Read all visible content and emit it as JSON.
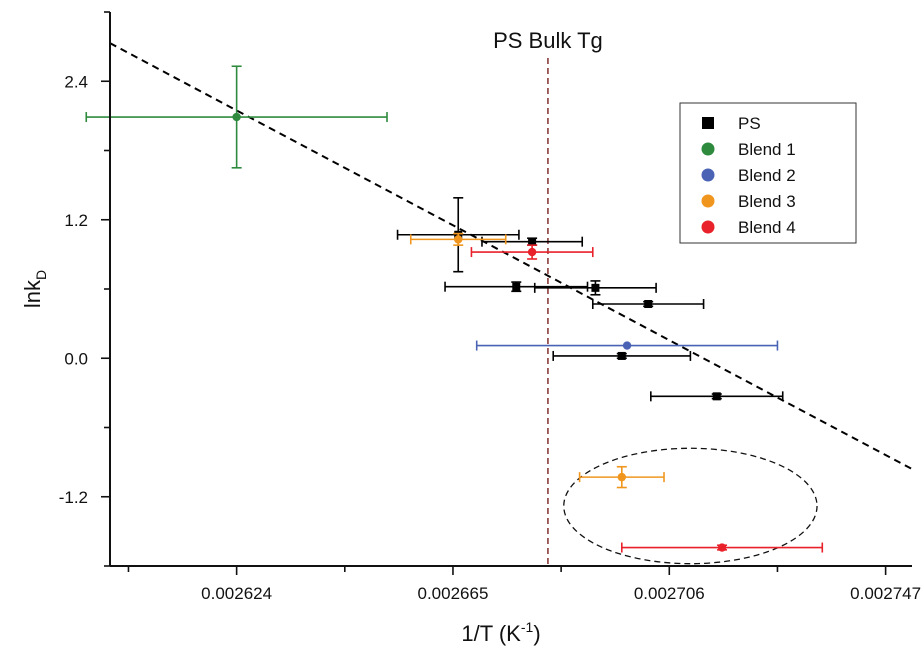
{
  "chart_data": {
    "type": "scatter",
    "title": "",
    "xlabel": "1/T (K",
    "xlabel_sup": "-1",
    "xlabel_close": ")",
    "ylabel": "lnk",
    "ylabel_sub": "D",
    "xlim": [
      0.0026,
      0.002752
    ],
    "ylim": [
      -1.8,
      3.0
    ],
    "x_ticks": [
      "0.002624",
      "0.002665",
      "0.002706",
      "0.002747"
    ],
    "y_ticks": [
      "2.4",
      "1.2",
      "0.0",
      "-1.2"
    ],
    "legend_position": "top-right",
    "series": [
      {
        "name": "PS",
        "marker": "square",
        "color": "#000000",
        "points": [
          {
            "x": 0.002666,
            "y": 1.07,
            "xerr": 1.15e-05,
            "yerr": 0.32
          },
          {
            "x": 0.00268,
            "y": 1.01,
            "xerr": 9.5e-06,
            "yerr": 0.03
          },
          {
            "x": 0.002677,
            "y": 0.62,
            "xerr": 1.35e-05,
            "yerr": 0.04
          },
          {
            "x": 0.002692,
            "y": 0.61,
            "xerr": 1.15e-05,
            "yerr": 0.06
          },
          {
            "x": 0.002702,
            "y": 0.47,
            "xerr": 1.05e-05,
            "yerr": 0.02
          },
          {
            "x": 0.002697,
            "y": 0.02,
            "xerr": 1.3e-05,
            "yerr": 0.02
          },
          {
            "x": 0.002715,
            "y": -0.33,
            "xerr": 1.25e-05,
            "yerr": 0.02
          }
        ]
      },
      {
        "name": "Blend 1",
        "marker": "circle",
        "color": "#2e8b3e",
        "points": [
          {
            "x": 0.002624,
            "y": 2.09,
            "xerr": 2.85e-05,
            "yerr": 0.44
          }
        ]
      },
      {
        "name": "Blend 2",
        "marker": "circle",
        "color": "#4a63b5",
        "points": [
          {
            "x": 0.002698,
            "y": 0.11,
            "xerr": 2.85e-05,
            "yerr": 0.0
          }
        ]
      },
      {
        "name": "Blend 3",
        "marker": "circle",
        "color": "#f0961e",
        "points": [
          {
            "x": 0.002666,
            "y": 1.03,
            "xerr": 9e-06,
            "yerr": 0.05
          },
          {
            "x": 0.002697,
            "y": -1.03,
            "xerr": 8e-06,
            "yerr": 0.09
          }
        ]
      },
      {
        "name": "Blend 4",
        "marker": "circle",
        "color": "#e8212a",
        "points": [
          {
            "x": 0.00268,
            "y": 0.92,
            "xerr": 1.15e-05,
            "yerr": 0.06
          },
          {
            "x": 0.002716,
            "y": -1.64,
            "xerr": 1.9e-05,
            "yerr": 0.02
          }
        ]
      }
    ],
    "fit_line": {
      "style": "dashed",
      "color": "#000000",
      "points": [
        [
          0.0026,
          2.73
        ],
        [
          0.002752,
          -0.96
        ]
      ]
    },
    "vertical_line": {
      "x": 0.002683,
      "color": "#8b3a3a",
      "style": "dashed",
      "label": "PS Bulk Tg"
    },
    "ellipse_annotation": {
      "cx": 0.00271,
      "cy": -1.28,
      "rx": 2.4e-05,
      "ry": 0.5,
      "style": "dashed"
    }
  }
}
